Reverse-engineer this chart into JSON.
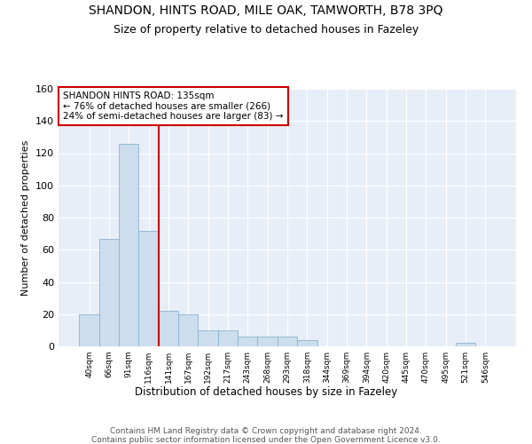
{
  "title": "SHANDON, HINTS ROAD, MILE OAK, TAMWORTH, B78 3PQ",
  "subtitle": "Size of property relative to detached houses in Fazeley",
  "xlabel": "Distribution of detached houses by size in Fazeley",
  "ylabel": "Number of detached properties",
  "bar_color": "#ccdded",
  "bar_edge_color": "#8ab4d0",
  "bin_labels": [
    "40sqm",
    "66sqm",
    "91sqm",
    "116sqm",
    "141sqm",
    "167sqm",
    "192sqm",
    "217sqm",
    "243sqm",
    "268sqm",
    "293sqm",
    "318sqm",
    "344sqm",
    "369sqm",
    "394sqm",
    "420sqm",
    "445sqm",
    "470sqm",
    "495sqm",
    "521sqm",
    "546sqm"
  ],
  "bar_values": [
    20,
    67,
    126,
    72,
    22,
    20,
    10,
    10,
    6,
    6,
    6,
    4,
    0,
    0,
    0,
    0,
    0,
    0,
    0,
    2,
    0
  ],
  "ylim": [
    0,
    160
  ],
  "yticks": [
    0,
    20,
    40,
    60,
    80,
    100,
    120,
    140,
    160
  ],
  "annotation_text": "SHANDON HINTS ROAD: 135sqm\n← 76% of detached houses are smaller (266)\n24% of semi-detached houses are larger (83) →",
  "annotation_box_color": "#ffffff",
  "annotation_box_edge": "#cc0000",
  "bg_color": "#e8eef8",
  "footer_text": "Contains HM Land Registry data © Crown copyright and database right 2024.\nContains public sector information licensed under the Open Government Licence v3.0.",
  "red_line_color": "#cc0000",
  "title_fontsize": 10,
  "subtitle_fontsize": 9,
  "footer_fontsize": 6.5
}
